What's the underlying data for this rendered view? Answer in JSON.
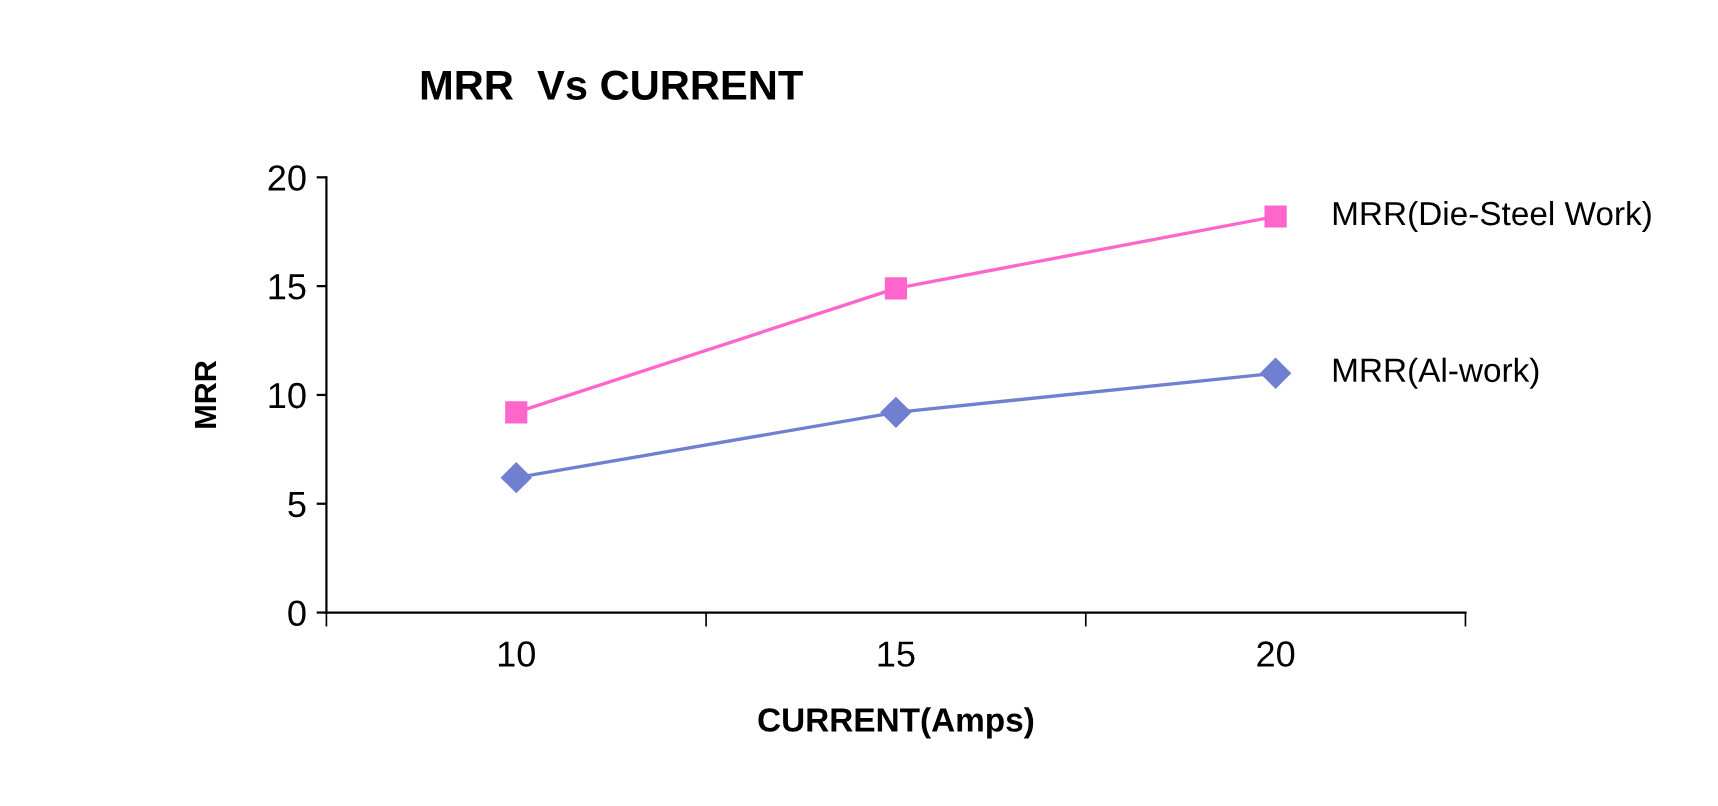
{
  "chart_data": {
    "type": "line",
    "title": "MRR  Vs CURRENT",
    "xlabel": "CURRENT(Amps)",
    "ylabel": "MRR",
    "categories": [
      "10",
      "15",
      "20"
    ],
    "series": [
      {
        "name": "MRR(Die-Steel Work)",
        "color": "#ff66cc",
        "values": [
          9.2,
          14.9,
          18.2
        ],
        "marker": "square"
      },
      {
        "name": "MRR(Al-work)",
        "color": "#7080d0",
        "values": [
          6.2,
          9.2,
          11.0
        ],
        "marker": "diamond"
      }
    ],
    "ylim": [
      0,
      20
    ],
    "yticks": [
      0,
      5,
      10,
      15,
      20
    ],
    "grid": false,
    "legend": false,
    "line_style": "solid"
  }
}
